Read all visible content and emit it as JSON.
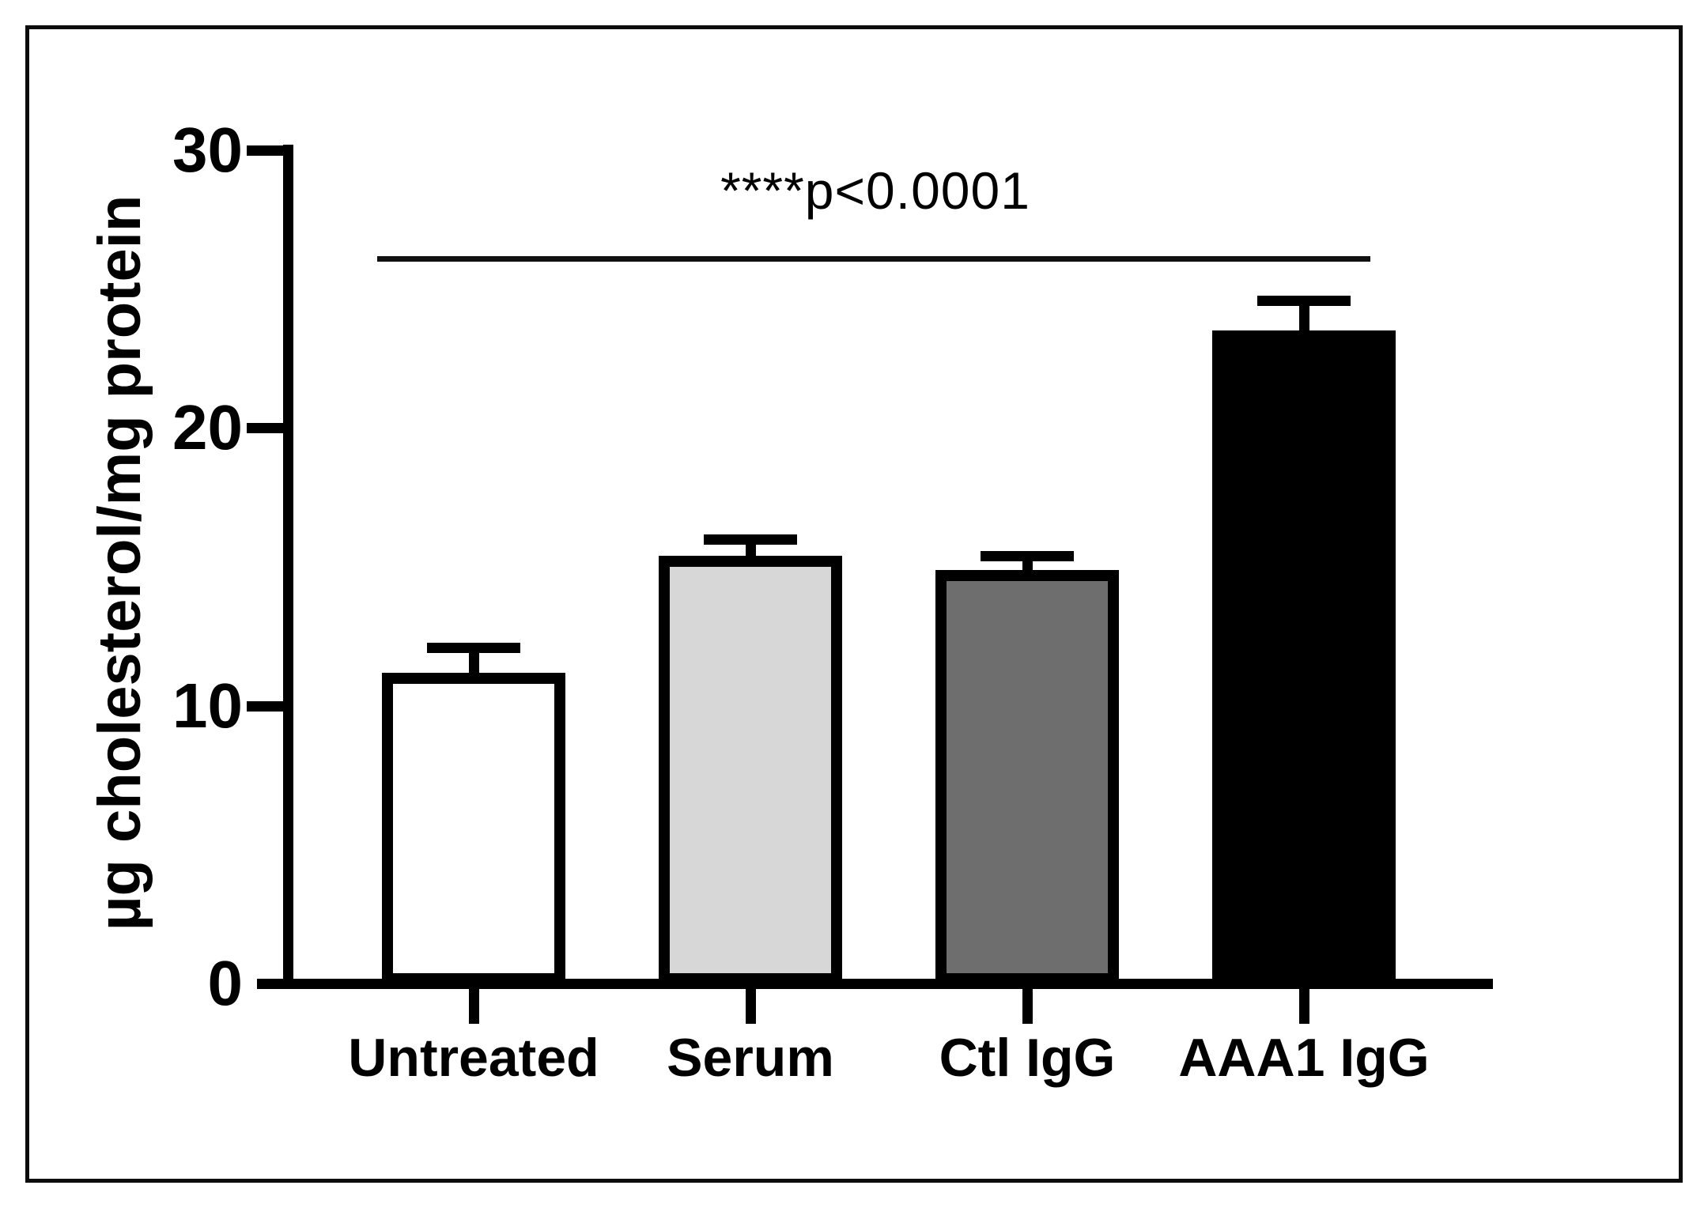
{
  "figure": {
    "background": "#ffffff",
    "border_color": "#0d0d0d"
  },
  "chart_data": {
    "type": "bar",
    "title": "",
    "categories": [
      "Untreated",
      "Serum",
      "Ctl IgG",
      "AAA1 IgG"
    ],
    "values": [
      11.2,
      15.4,
      14.9,
      23.5
    ],
    "errors_upper": [
      0.9,
      0.6,
      0.5,
      1.1
    ],
    "bar_fill_colors": [
      "#ffffff",
      "#d7d7d7",
      "#6e6e6e",
      "#000000"
    ],
    "bar_edge_color": "#000000",
    "error_bar_color": "#000000",
    "ylabel": "µg cholesterol/mg protein",
    "xlabel": "",
    "ylim": [
      0,
      30
    ],
    "yticks": [
      30,
      20,
      10,
      0
    ],
    "grid": false,
    "legend": null,
    "annotation": {
      "text": "****p<0.0001",
      "sig_line_value": 26
    }
  }
}
